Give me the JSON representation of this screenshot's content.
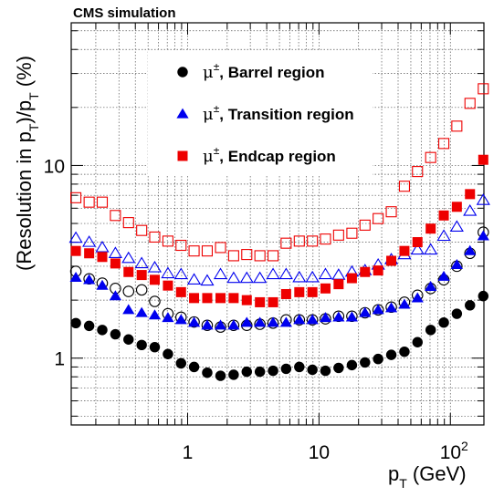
{
  "chart_data": {
    "type": "scatter",
    "title": "CMS simulation",
    "xlabel": {
      "main": "p",
      "sub": "T",
      "unit": " (GeV)"
    },
    "ylabel": {
      "pre": "(Resolution in p",
      "sub1": "T",
      "mid": ")/p",
      "sub2": "T",
      "post": "  (%)"
    },
    "xscale": "log",
    "yscale": "log",
    "xlim": [
      0.13,
      180
    ],
    "ylim": [
      0.45,
      55
    ],
    "grid": true,
    "x_ticks": [
      {
        "value": 1,
        "label": "1"
      },
      {
        "value": 10,
        "label": "10"
      },
      {
        "value": 100,
        "label": "10",
        "sup": "2"
      }
    ],
    "y_ticks": [
      {
        "value": 1,
        "label": "1"
      },
      {
        "value": 10,
        "label": "10"
      }
    ],
    "legend_position": "top-center",
    "legend": [
      {
        "label": "Barrel region",
        "prefix": "μ",
        "sup": "±",
        "marker": "circle",
        "color": "#000000"
      },
      {
        "label": "Transition region",
        "prefix": "μ",
        "sup": "±",
        "marker": "triangle",
        "color": "#0000ee"
      },
      {
        "label": "Endcap region",
        "prefix": "μ",
        "sup": "±",
        "marker": "square",
        "color": "#ee0000"
      }
    ],
    "series": [
      {
        "marker": "circle",
        "filled": true,
        "color": "#000000",
        "x": [
          0.141,
          0.178,
          0.224,
          0.282,
          0.355,
          0.447,
          0.562,
          0.708,
          0.891,
          1.12,
          1.41,
          1.78,
          2.24,
          2.82,
          3.55,
          4.47,
          5.62,
          7.08,
          8.91,
          11.2,
          14.1,
          17.8,
          22.4,
          28.2,
          35.5,
          44.7,
          56.2,
          70.8,
          89.1,
          112,
          141,
          178
        ],
        "y": [
          1.52,
          1.47,
          1.4,
          1.33,
          1.25,
          1.17,
          1.14,
          1.05,
          0.94,
          0.9,
          0.84,
          0.81,
          0.82,
          0.85,
          0.85,
          0.86,
          0.88,
          0.9,
          0.87,
          0.86,
          0.89,
          0.92,
          0.95,
          0.99,
          1.04,
          1.08,
          1.21,
          1.4,
          1.53,
          1.7,
          1.88,
          2.1
        ]
      },
      {
        "marker": "circle",
        "filled": false,
        "color": "#000000",
        "x": [
          0.141,
          0.178,
          0.224,
          0.282,
          0.355,
          0.447,
          0.562,
          0.708,
          0.891,
          1.12,
          1.41,
          1.78,
          2.24,
          2.82,
          3.55,
          4.47,
          5.62,
          7.08,
          8.91,
          11.2,
          14.1,
          17.8,
          22.4,
          28.2,
          35.5,
          44.7,
          56.2,
          70.8,
          89.1,
          112,
          141,
          178
        ],
        "y": [
          2.82,
          2.58,
          2.45,
          2.3,
          2.22,
          2.26,
          1.97,
          1.7,
          1.63,
          1.54,
          1.48,
          1.45,
          1.48,
          1.48,
          1.5,
          1.52,
          1.58,
          1.58,
          1.58,
          1.6,
          1.65,
          1.65,
          1.72,
          1.78,
          1.84,
          1.95,
          2.12,
          2.3,
          2.55,
          3.0,
          3.5,
          4.5
        ]
      },
      {
        "marker": "triangle",
        "filled": true,
        "color": "#0000ee",
        "x": [
          0.141,
          0.178,
          0.224,
          0.282,
          0.355,
          0.447,
          0.562,
          0.708,
          0.891,
          1.12,
          1.41,
          1.78,
          2.24,
          2.82,
          3.55,
          4.47,
          5.62,
          7.08,
          8.91,
          11.2,
          14.1,
          17.8,
          22.4,
          28.2,
          35.5,
          44.7,
          56.2,
          70.8,
          89.1,
          112,
          141,
          178
        ],
        "y": [
          2.62,
          2.55,
          2.38,
          2.1,
          1.78,
          1.72,
          1.67,
          1.62,
          1.58,
          1.53,
          1.48,
          1.48,
          1.48,
          1.53,
          1.53,
          1.53,
          1.53,
          1.58,
          1.58,
          1.62,
          1.63,
          1.63,
          1.72,
          1.78,
          1.82,
          1.9,
          2.05,
          2.35,
          2.65,
          3.05,
          3.6,
          4.3
        ]
      },
      {
        "marker": "triangle",
        "filled": false,
        "color": "#0000ee",
        "x": [
          0.141,
          0.178,
          0.224,
          0.282,
          0.355,
          0.447,
          0.562,
          0.708,
          0.891,
          1.12,
          1.41,
          1.78,
          2.24,
          2.82,
          3.55,
          4.47,
          5.62,
          7.08,
          8.91,
          11.2,
          14.1,
          17.8,
          22.4,
          28.2,
          35.5,
          44.7,
          56.2,
          70.8,
          89.1,
          112,
          141,
          178
        ],
        "y": [
          4.2,
          4.0,
          3.75,
          3.5,
          3.3,
          3.1,
          2.95,
          2.75,
          2.72,
          2.55,
          2.52,
          2.72,
          2.6,
          2.6,
          2.6,
          2.72,
          2.72,
          2.62,
          2.62,
          2.72,
          2.7,
          2.8,
          2.85,
          3.05,
          3.25,
          3.45,
          3.65,
          3.65,
          4.3,
          4.8,
          5.8,
          6.6
        ]
      },
      {
        "marker": "square",
        "filled": true,
        "color": "#ee0000",
        "x": [
          0.141,
          0.178,
          0.224,
          0.282,
          0.355,
          0.447,
          0.562,
          0.708,
          0.891,
          1.12,
          1.41,
          1.78,
          2.24,
          2.82,
          3.55,
          4.47,
          5.62,
          7.08,
          8.91,
          11.2,
          14.1,
          17.8,
          22.4,
          28.2,
          35.5,
          44.7,
          56.2,
          70.8,
          89.1,
          112,
          141,
          178
        ],
        "y": [
          3.6,
          3.5,
          3.35,
          3.1,
          2.8,
          2.7,
          2.55,
          2.38,
          2.2,
          2.05,
          2.05,
          2.05,
          2.05,
          2.0,
          1.95,
          1.95,
          2.15,
          2.2,
          2.2,
          2.3,
          2.42,
          2.6,
          2.8,
          2.85,
          3.2,
          3.6,
          4.0,
          4.7,
          5.5,
          6.1,
          7.1,
          10.7
        ]
      },
      {
        "marker": "square",
        "filled": false,
        "color": "#ee0000",
        "x": [
          0.141,
          0.178,
          0.224,
          0.282,
          0.355,
          0.447,
          0.562,
          0.708,
          0.891,
          1.12,
          1.41,
          1.78,
          2.24,
          2.82,
          3.55,
          4.47,
          5.62,
          7.08,
          8.91,
          11.2,
          14.1,
          17.8,
          22.4,
          28.2,
          35.5,
          44.7,
          56.2,
          70.8,
          89.1,
          112,
          141,
          178
        ],
        "y": [
          6.8,
          6.45,
          6.45,
          5.5,
          5.05,
          4.6,
          4.25,
          4.05,
          3.85,
          3.6,
          3.6,
          3.75,
          3.4,
          3.45,
          3.4,
          3.4,
          3.95,
          4.05,
          4.05,
          4.15,
          4.35,
          4.45,
          4.9,
          5.3,
          5.75,
          7.8,
          9.3,
          11.0,
          13.0,
          16.0,
          21.0,
          25.0
        ]
      }
    ]
  }
}
